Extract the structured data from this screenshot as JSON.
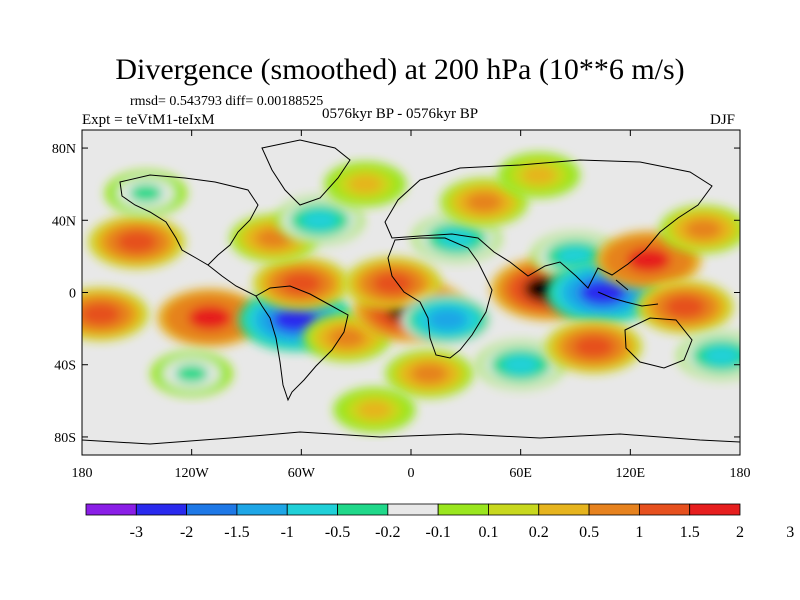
{
  "chart_data": {
    "type": "heatmap",
    "title": "Divergence (smoothed) at 200 hPa (10**6 m/s)",
    "stats": "rmsd= 0.543793 diff= 0.00188525",
    "experiment": "Expt = teVtM1-teIxM",
    "period": "0576kyr BP - 0576kyr BP",
    "season": "DJF",
    "x_ticks": [
      {
        "value": -180,
        "label": "180"
      },
      {
        "value": -120,
        "label": "120W"
      },
      {
        "value": -60,
        "label": "60W"
      },
      {
        "value": 0,
        "label": "0"
      },
      {
        "value": 60,
        "label": "60E"
      },
      {
        "value": 120,
        "label": "120E"
      },
      {
        "value": 180,
        "label": "180"
      }
    ],
    "y_ticks": [
      {
        "value": 80,
        "label": "80N"
      },
      {
        "value": 40,
        "label": "40N"
      },
      {
        "value": 0,
        "label": "0"
      },
      {
        "value": -40,
        "label": "40S"
      },
      {
        "value": -80,
        "label": "80S"
      }
    ],
    "xlim": [
      -180,
      180
    ],
    "ylim": [
      -90,
      90
    ],
    "colorbar": {
      "colors": [
        "#8a1ee6",
        "#2a2aee",
        "#1e78e6",
        "#1ea6e6",
        "#20d0d8",
        "#20d88a",
        "#e8e8e8",
        "#9ae61e",
        "#c8d81e",
        "#e6b41e",
        "#e6821e",
        "#e6501e",
        "#e61e1e"
      ],
      "labels": [
        "-3",
        "-2",
        "-1.5",
        "-1",
        "-0.5",
        "-0.2",
        "-0.1",
        "0.1",
        "0.2",
        "0.5",
        "1",
        "1.5",
        "2",
        "3"
      ]
    },
    "features": [
      {
        "lon": -110,
        "lat": -14,
        "value": 1.5
      },
      {
        "lon": -150,
        "lat": 28,
        "value": 1.0
      },
      {
        "lon": -170,
        "lat": -12,
        "value": 1.0
      },
      {
        "lon": -145,
        "lat": 55,
        "value": -0.2
      },
      {
        "lon": -63,
        "lat": -15,
        "value": -2.0
      },
      {
        "lon": -60,
        "lat": 5,
        "value": 1.0
      },
      {
        "lon": -75,
        "lat": 30,
        "value": 0.5
      },
      {
        "lon": -50,
        "lat": 40,
        "value": -0.5
      },
      {
        "lon": -35,
        "lat": -25,
        "value": 0.5
      },
      {
        "lon": 0,
        "lat": -10,
        "value": 2.0
      },
      {
        "lon": -10,
        "lat": 5,
        "value": 1.0
      },
      {
        "lon": 20,
        "lat": -15,
        "value": -1.0
      },
      {
        "lon": 25,
        "lat": 30,
        "value": -0.5
      },
      {
        "lon": 75,
        "lat": 2,
        "value": 2.0
      },
      {
        "lon": 40,
        "lat": 50,
        "value": 0.5
      },
      {
        "lon": 90,
        "lat": 20,
        "value": -0.5
      },
      {
        "lon": 105,
        "lat": 0,
        "value": -2.0
      },
      {
        "lon": 130,
        "lat": 18,
        "value": 1.5
      },
      {
        "lon": 150,
        "lat": -8,
        "value": 1.0
      },
      {
        "lon": 160,
        "lat": 35,
        "value": 0.5
      },
      {
        "lon": 10,
        "lat": -45,
        "value": 0.5
      },
      {
        "lon": 60,
        "lat": -40,
        "value": -0.5
      },
      {
        "lon": -120,
        "lat": -45,
        "value": -0.2
      },
      {
        "lon": 100,
        "lat": -30,
        "value": 1.0
      },
      {
        "lon": -25,
        "lat": 60,
        "value": 0.2
      },
      {
        "lon": 70,
        "lat": 65,
        "value": 0.2
      },
      {
        "lon": 170,
        "lat": -35,
        "value": -0.5
      },
      {
        "lon": -20,
        "lat": -65,
        "value": 0.2
      }
    ]
  }
}
